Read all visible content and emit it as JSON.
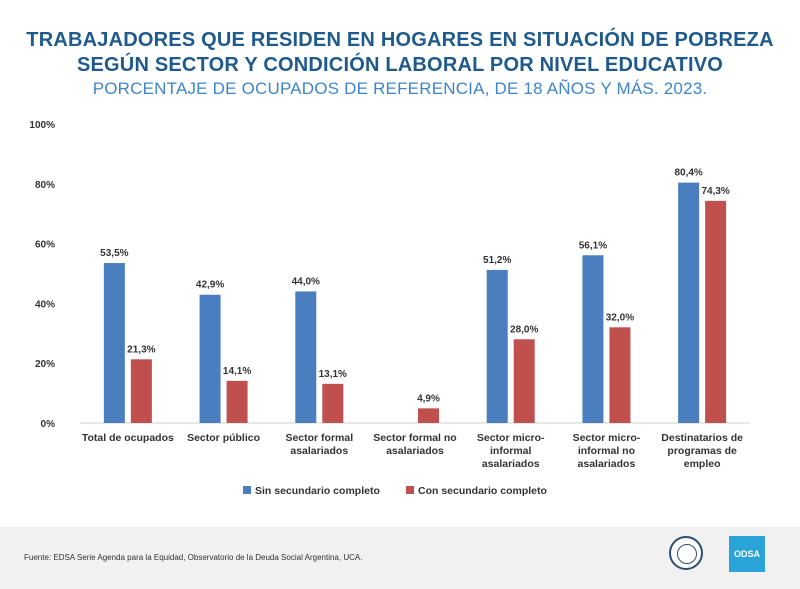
{
  "header": {
    "title_line1": "TRABAJADORES QUE RESIDEN EN HOGARES EN SITUACIÓN DE POBREZA",
    "title_line2": "SEGÚN SECTOR Y CONDICIÓN LABORAL POR NIVEL EDUCATIVO",
    "subtitle": "PORCENTAJE DE OCUPADOS DE REFERENCIA, DE 18 AÑOS Y MÁS. 2023."
  },
  "chart_data": {
    "type": "bar",
    "categories": [
      [
        "Total de ocupados"
      ],
      [
        "Sector público"
      ],
      [
        "Sector formal",
        "asalariados"
      ],
      [
        "Sector formal no",
        "asalariados"
      ],
      [
        "Sector micro-",
        "informal",
        "asalariados"
      ],
      [
        "Sector micro-",
        "informal no",
        "asalariados"
      ],
      [
        "Destinatarios de",
        "programas de",
        "empleo"
      ]
    ],
    "series": [
      {
        "name": "Sin secundario completo",
        "color": "#4a7ebf",
        "values": [
          53.5,
          42.9,
          44.0,
          null,
          51.2,
          56.1,
          80.4
        ],
        "labels": [
          "53,5%",
          "42,9%",
          "44,0%",
          "",
          "51,2%",
          "56,1%",
          "80,4%"
        ]
      },
      {
        "name": "Con secundario completo",
        "color": "#c0504d",
        "values": [
          21.3,
          14.1,
          13.1,
          4.9,
          28.0,
          32.0,
          74.3
        ],
        "labels": [
          "21,3%",
          "14,1%",
          "13,1%",
          "4,9%",
          "28,0%",
          "32,0%",
          "74,3%"
        ]
      }
    ],
    "ylim": [
      0,
      100
    ],
    "yticks": [
      0,
      20,
      40,
      60,
      80,
      100
    ],
    "ytick_labels": [
      "0%",
      "20%",
      "40%",
      "60%",
      "80%",
      "100%"
    ],
    "grid": false,
    "legend_position": "bottom"
  },
  "footer": {
    "source": "Fuente: EDSA Serie Agenda para la Equidad, Observatorio de la Deuda Social Argentina, UCA.",
    "logo_text": "ODSA"
  }
}
